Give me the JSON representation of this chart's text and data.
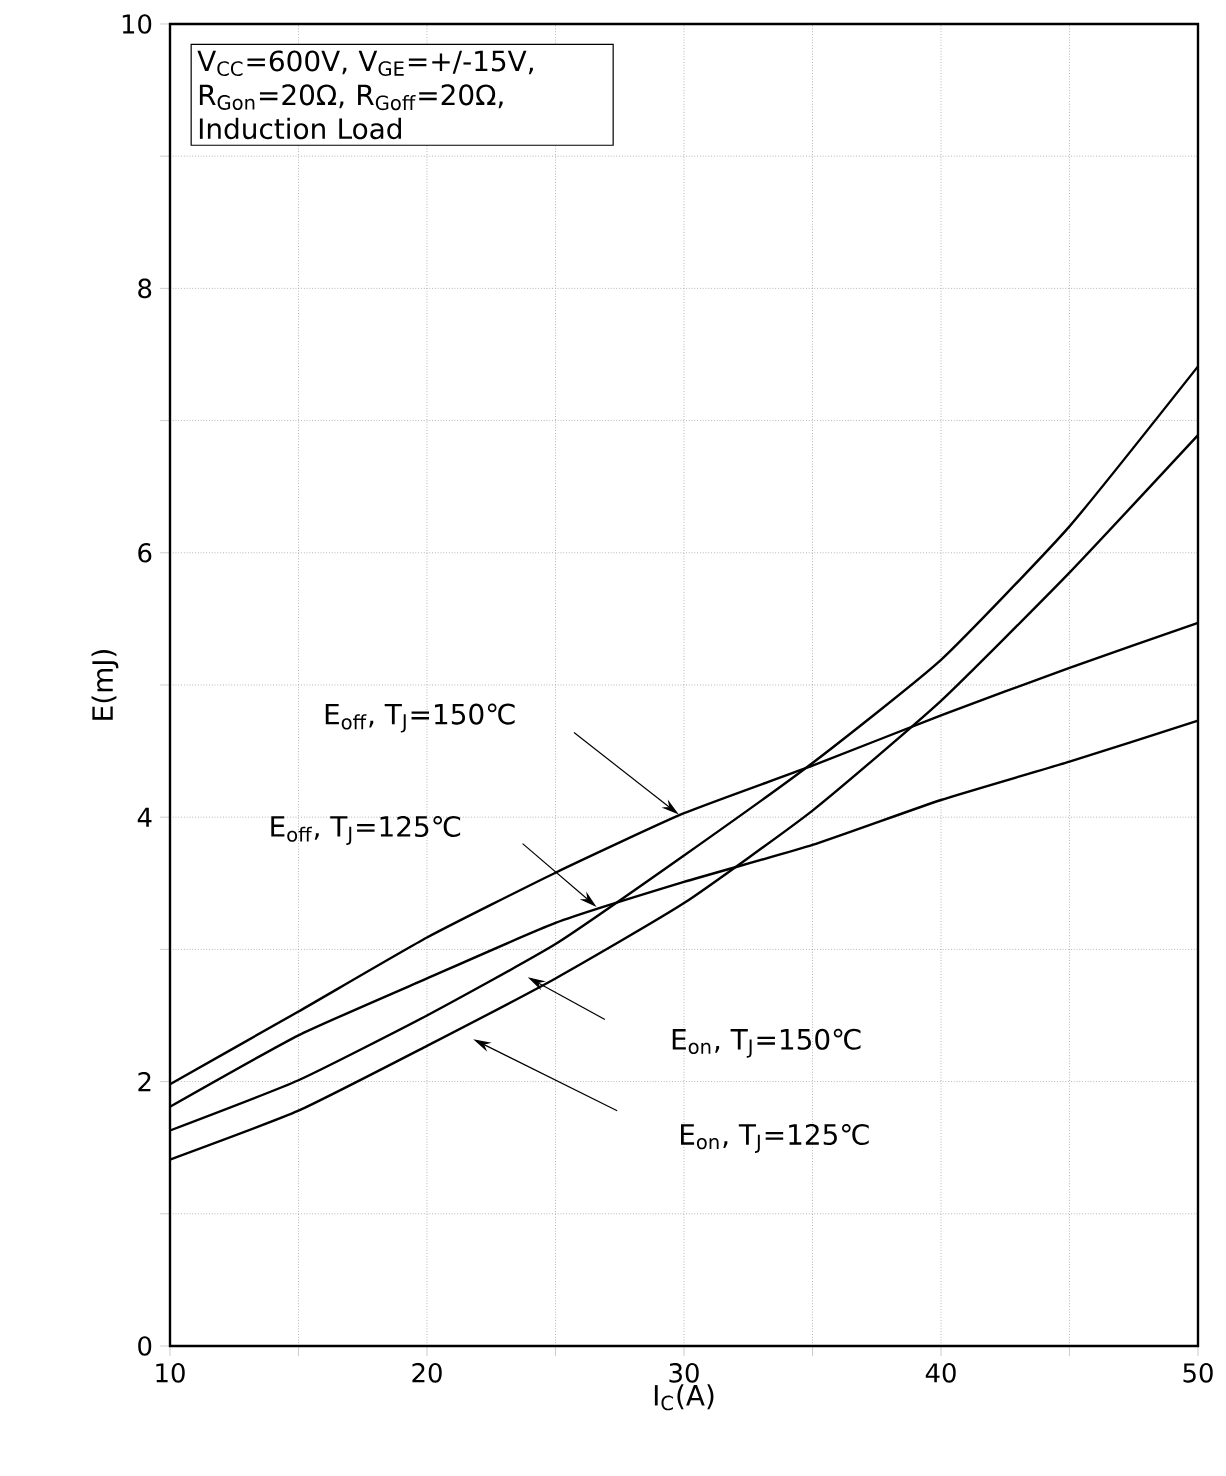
{
  "chart_data": {
    "type": "line",
    "xlabel": "I$_{C}$(A)",
    "ylabel": "E(mJ)",
    "x": [
      10,
      15,
      20,
      25,
      30,
      35,
      40,
      45,
      50
    ],
    "series": [
      {
        "color": "#000000",
        "values": [
          1.98,
          2.53,
          3.09,
          3.58,
          4.03,
          4.39,
          4.77,
          5.13,
          5.47
        ]
      },
      {
        "color": "#000000",
        "values": [
          1.81,
          2.35,
          2.78,
          3.2,
          3.51,
          3.79,
          4.13,
          4.42,
          4.73
        ]
      },
      {
        "color": "#000000",
        "values": [
          1.63,
          2.01,
          2.5,
          3.04,
          3.71,
          4.41,
          5.19,
          6.2,
          7.41
        ]
      },
      {
        "color": "#000000",
        "values": [
          1.41,
          1.78,
          2.27,
          2.78,
          3.35,
          4.05,
          4.88,
          5.85,
          6.89
        ]
      }
    ],
    "xlim": [
      10,
      50
    ],
    "ylim": [
      0,
      10
    ],
    "xticks": [
      10,
      {
        "value": 15,
        "label": null
      },
      20,
      {
        "value": 25,
        "label": null
      },
      30,
      {
        "value": 35,
        "label": null
      },
      40,
      {
        "value": 45,
        "label": null
      },
      50
    ],
    "yticks": [
      0,
      {
        "value": 1,
        "label": null
      },
      2,
      {
        "value": 3,
        "label": null
      },
      4,
      {
        "value": 5,
        "label": null
      },
      6,
      {
        "value": 7,
        "label": null
      },
      8,
      {
        "value": 9,
        "label": null
      },
      10
    ],
    "grid": true,
    "marker": "none",
    "line_style": "solid",
    "annotations": [
      "V$_{CC}$=600V, V$_{GE}$=+/-15V, R$_{Gon}$=20Ω, R$_{Goff}$=20Ω, Induction Load",
      "E$_{off}$, T$_{J}$=150℃",
      "E$_{off}$, T$_{J}$=125℃",
      "E$_{on}$, T$_{J}$=150℃",
      "E$_{on}$, T$_{J}$=125℃"
    ]
  }
}
